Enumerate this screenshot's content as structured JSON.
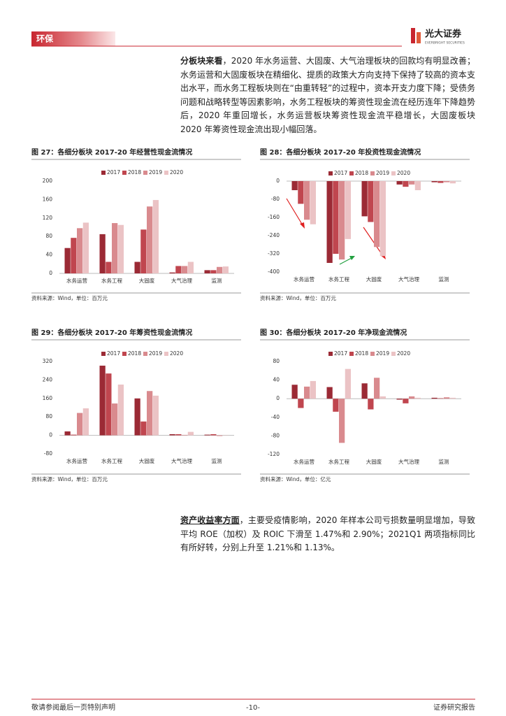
{
  "header": {
    "section": "环保",
    "brand": "光大证券",
    "brand_en": "EVERBRIGHT SECURITIES"
  },
  "paragraphs": [
    {
      "lead": "分板块来看",
      "text": "，2020 年水务运营、大固废、大气治理板块的回款均有明显改善；水务运营和大固废板块在精细化、提质的政策大方向支持下保持了较高的资本支出水平，而水务工程板块则在“由重转轻”的过程中，资本开支力度下降；受债务问题和战略转型等因素影响，水务工程板块的筹资性现金流在经历连年下降趋势后，2020 年重回增长，水务运营板块筹资性现金流平稳增长，大固废板块 2020 年筹资性现金流出现小幅回落。"
    },
    {
      "lead": "资产收益率方面",
      "text": "，主要受疫情影响，2020 年样本公司亏损数量明显增加，导致平均 ROE（加权）及 ROIC 下滑至 1.47%和 2.90%；2021Q1 两项指标同比有所好转，分别上升至 1.21%和 1.13%。"
    }
  ],
  "chart_data": [
    {
      "type": "bar",
      "title": "图 27：各细分板块 2017-20 年经营性现金流情况",
      "source": "资料来源：Wind，单位：百万元",
      "categories": [
        "水务运营",
        "水务工程",
        "大固废",
        "大气治理",
        "监测"
      ],
      "series": [
        {
          "name": "2017",
          "color": "#9b2a35",
          "values": [
            55,
            85,
            25,
            2,
            7
          ]
        },
        {
          "name": "2018",
          "color": "#c0464f",
          "values": [
            77,
            25,
            95,
            16,
            7
          ]
        },
        {
          "name": "2019",
          "color": "#d98a8e",
          "values": [
            98,
            109,
            145,
            16,
            14
          ]
        },
        {
          "name": "2020",
          "color": "#ebc3c5",
          "values": [
            110,
            105,
            159,
            25,
            15
          ]
        }
      ],
      "ylim": [
        0,
        200
      ],
      "yticks": [
        0,
        40,
        80,
        120,
        160,
        200
      ]
    },
    {
      "type": "bar",
      "title": "图 28：各细分板块 2017-20 年投资性现金流情况",
      "source": "资料来源：Wind，单位：百万元",
      "categories": [
        "水务运营",
        "水务工程",
        "大固废",
        "大气治理",
        "监测"
      ],
      "series": [
        {
          "name": "2017",
          "color": "#9b2a35",
          "values": [
            -40,
            -360,
            -155,
            -15,
            -5
          ]
        },
        {
          "name": "2018",
          "color": "#c0464f",
          "values": [
            -100,
            -320,
            -180,
            -25,
            -8
          ]
        },
        {
          "name": "2019",
          "color": "#d98a8e",
          "values": [
            -170,
            -345,
            -290,
            -15,
            -5
          ]
        },
        {
          "name": "2020",
          "color": "#ebc3c5",
          "values": [
            -190,
            -255,
            -330,
            -40,
            -10
          ]
        }
      ],
      "ylim": [
        -400,
        0
      ],
      "yticks": [
        0,
        -80,
        -160,
        -240,
        -320,
        -400
      ]
    },
    {
      "type": "bar",
      "title": "图 29：各细分板块 2017-20 年筹资性现金流情况",
      "source": "资料来源：Wind，单位：百万元",
      "categories": [
        "水务运营",
        "水务工程",
        "大固废",
        "大气治理",
        "监测"
      ],
      "series": [
        {
          "name": "2017",
          "color": "#9b2a35",
          "values": [
            17,
            302,
            160,
            5,
            3
          ]
        },
        {
          "name": "2018",
          "color": "#c0464f",
          "values": [
            3,
            268,
            60,
            5,
            5
          ]
        },
        {
          "name": "2019",
          "color": "#d98a8e",
          "values": [
            97,
            138,
            192,
            2,
            -3
          ]
        },
        {
          "name": "2020",
          "color": "#ebc3c5",
          "values": [
            117,
            220,
            172,
            15,
            1
          ]
        }
      ],
      "ylim": [
        -80,
        320
      ],
      "yticks": [
        -80,
        0,
        80,
        160,
        240,
        320
      ]
    },
    {
      "type": "bar",
      "title": "图 30：各细分板块 2017-20 年净现金流情况",
      "source": "资料来源：Wind，单位：亿元",
      "categories": [
        "水务运营",
        "水务工程",
        "大固废",
        "大气治理",
        "监测"
      ],
      "series": [
        {
          "name": "2017",
          "color": "#9b2a35",
          "values": [
            30,
            25,
            33,
            -2,
            2
          ]
        },
        {
          "name": "2018",
          "color": "#c0464f",
          "values": [
            -20,
            -28,
            -23,
            -10,
            1
          ]
        },
        {
          "name": "2019",
          "color": "#d98a8e",
          "values": [
            26,
            -95,
            45,
            5,
            3
          ]
        },
        {
          "name": "2020",
          "color": "#ebc3c5",
          "values": [
            38,
            64,
            5,
            2,
            2
          ]
        }
      ],
      "ylim": [
        -120,
        80
      ],
      "yticks": [
        80,
        40,
        0,
        -40,
        -80,
        -120
      ]
    }
  ],
  "footer": {
    "left": "敬请参阅最后一页特别声明",
    "page": "-10-",
    "right": "证券研究报告"
  }
}
